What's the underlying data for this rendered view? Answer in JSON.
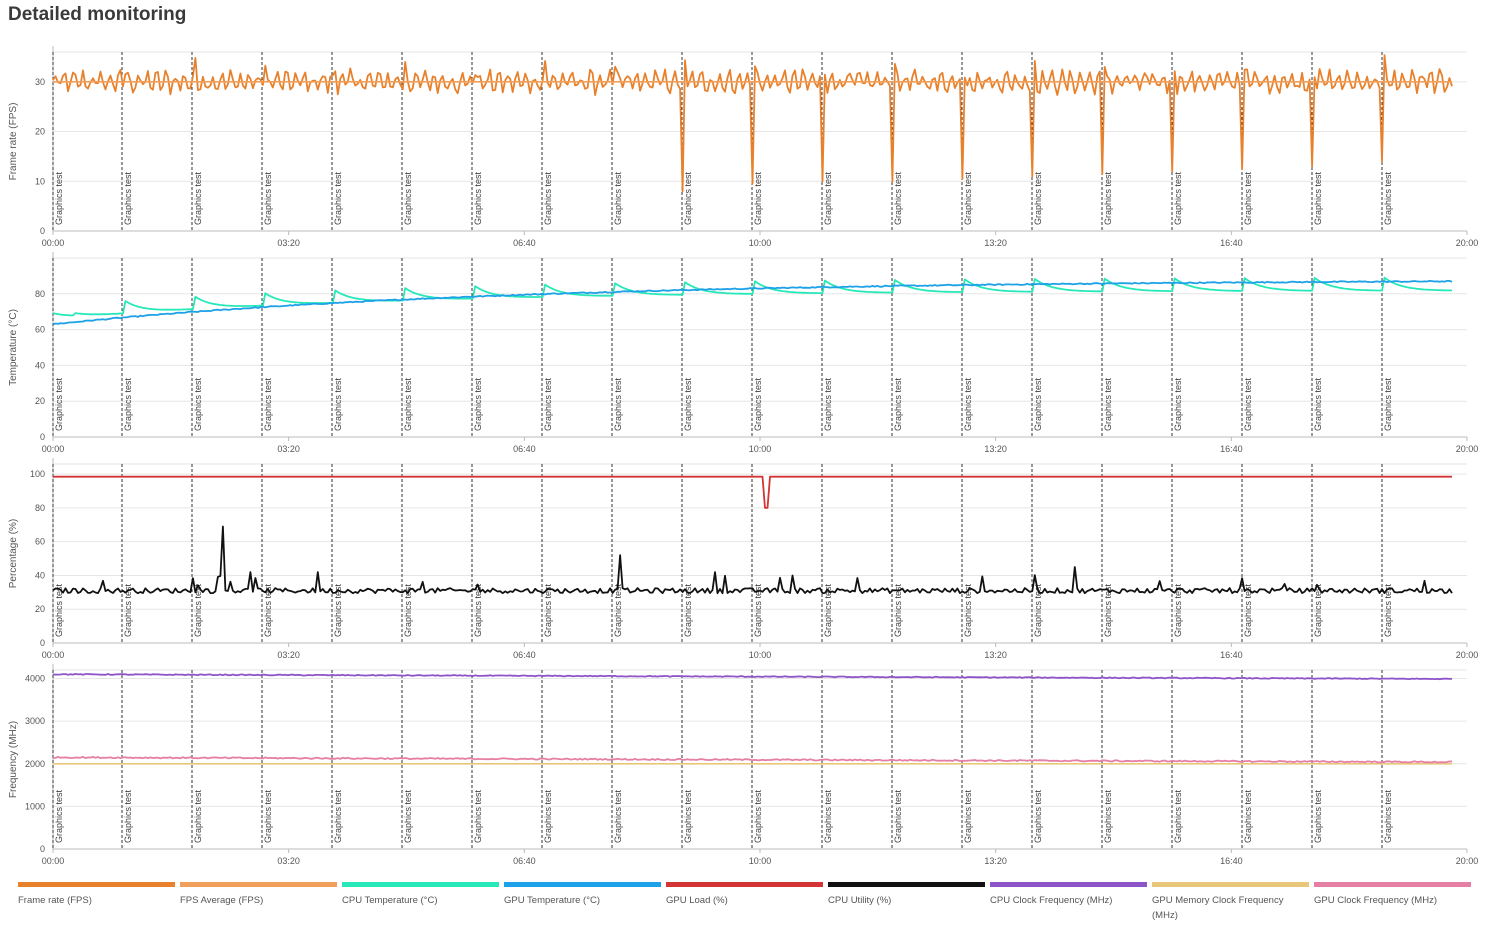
{
  "page": {
    "title": "Detailed monitoring"
  },
  "time_ticks": [
    "00:00",
    "03:20",
    "06:40",
    "10:00",
    "13:20",
    "16:40",
    "20:00"
  ],
  "marker_label": "Graphics test",
  "chart_data": [
    {
      "type": "line",
      "ylabel": "Frame rate (FPS)",
      "ylim": [
        0,
        36
      ],
      "yticks": [
        0,
        10,
        20,
        30
      ],
      "series": [
        {
          "name": "Frame rate (FPS)",
          "color": "#e8812c",
          "kind": "fps"
        },
        {
          "name": "FPS Average (FPS)",
          "color": "#f0a05a",
          "kind": "fps_avg",
          "value": 30
        }
      ]
    },
    {
      "type": "line",
      "ylabel": "Temperature (°C)",
      "ylim": [
        0,
        100
      ],
      "yticks": [
        0,
        20,
        40,
        60,
        80
      ],
      "series": [
        {
          "name": "CPU Temperature (°C)",
          "color": "#27e8b8",
          "kind": "cpu_temp"
        },
        {
          "name": "GPU Temperature (°C)",
          "color": "#1da1e8",
          "kind": "gpu_temp"
        }
      ]
    },
    {
      "type": "line",
      "ylabel": "Percentage (%)",
      "ylim": [
        0,
        106
      ],
      "yticks": [
        0,
        20,
        40,
        60,
        80,
        100
      ],
      "series": [
        {
          "name": "GPU Load (%)",
          "color": "#d33434",
          "kind": "gpu_load"
        },
        {
          "name": "CPU Utility (%)",
          "color": "#111111",
          "kind": "cpu_util"
        }
      ]
    },
    {
      "type": "line",
      "ylabel": "Frequency (MHz)",
      "ylim": [
        0,
        4200
      ],
      "yticks": [
        0,
        1000,
        2000,
        3000,
        4000
      ],
      "series": [
        {
          "name": "CPU Clock Frequency (MHz)",
          "color": "#8e55c9",
          "kind": "cpu_clock"
        },
        {
          "name": "GPU Memory Clock Frequency (MHz)",
          "color": "#e8c77a",
          "kind": "mem_clock",
          "value": 2000
        },
        {
          "name": "GPU Clock Frequency (MHz)",
          "color": "#e67fa4",
          "kind": "gpu_clock"
        }
      ]
    }
  ],
  "legend": [
    {
      "label": "Frame rate (FPS)",
      "color": "#e8812c"
    },
    {
      "label": "FPS Average (FPS)",
      "color": "#f0a05a"
    },
    {
      "label": "CPU Temperature (°C)",
      "color": "#27e8b8"
    },
    {
      "label": "GPU Temperature (°C)",
      "color": "#1da1e8"
    },
    {
      "label": "GPU Load (%)",
      "color": "#d33434"
    },
    {
      "label": "CPU Utility (%)",
      "color": "#111111"
    },
    {
      "label": "CPU Clock Frequency (MHz)",
      "color": "#8e55c9"
    },
    {
      "label": "GPU Memory Clock Frequency (MHz)",
      "color": "#e8c77a"
    },
    {
      "label": "GPU Clock Frequency (MHz)",
      "color": "#e67fa4"
    }
  ]
}
